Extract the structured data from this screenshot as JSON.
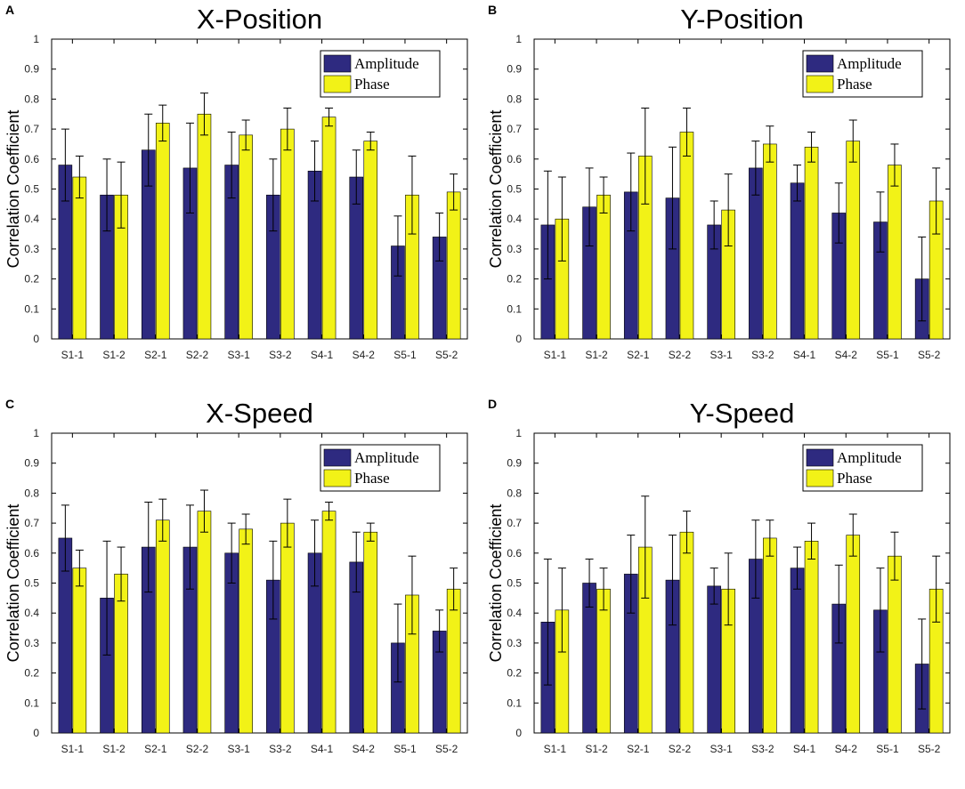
{
  "colors": {
    "amplitude": "#2e2a80",
    "phase": "#f2f217",
    "axis": "#000000"
  },
  "chart_data": [
    {
      "panel": "A",
      "type": "bar",
      "title": "X-Position",
      "xlabel": "",
      "ylabel": "Correlation  Coefficient",
      "ylim": [
        0,
        1
      ],
      "yticks": [
        "0",
        "0.1",
        "0.2",
        "0.3",
        "0.4",
        "0.5",
        "0.6",
        "0.7",
        "0.8",
        "0.9",
        "1"
      ],
      "legend_position": "top-right",
      "categories": [
        "S1-1",
        "S1-2",
        "S2-1",
        "S2-2",
        "S3-1",
        "S3-2",
        "S4-1",
        "S4-2",
        "S5-1",
        "S5-2"
      ],
      "series": [
        {
          "name": "Amplitude",
          "values": [
            0.58,
            0.48,
            0.63,
            0.57,
            0.58,
            0.48,
            0.56,
            0.54,
            0.31,
            0.34
          ],
          "errors": [
            0.12,
            0.12,
            0.12,
            0.15,
            0.11,
            0.12,
            0.1,
            0.09,
            0.1,
            0.08
          ]
        },
        {
          "name": "Phase",
          "values": [
            0.54,
            0.48,
            0.72,
            0.75,
            0.68,
            0.7,
            0.74,
            0.66,
            0.48,
            0.49
          ],
          "errors": [
            0.07,
            0.11,
            0.06,
            0.07,
            0.05,
            0.07,
            0.03,
            0.03,
            0.13,
            0.06
          ]
        }
      ]
    },
    {
      "panel": "B",
      "type": "bar",
      "title": "Y-Position",
      "xlabel": "",
      "ylabel": "Correlation  Coefficient",
      "ylim": [
        0,
        1
      ],
      "yticks": [
        "0",
        "0.1",
        "0.2",
        "0.3",
        "0.4",
        "0.5",
        "0.6",
        "0.7",
        "0.8",
        "0.9",
        "1"
      ],
      "legend_position": "top-right",
      "categories": [
        "S1-1",
        "S1-2",
        "S2-1",
        "S2-2",
        "S3-1",
        "S3-2",
        "S4-1",
        "S4-2",
        "S5-1",
        "S5-2"
      ],
      "series": [
        {
          "name": "Amplitude",
          "values": [
            0.38,
            0.44,
            0.49,
            0.47,
            0.38,
            0.57,
            0.52,
            0.42,
            0.39,
            0.2
          ],
          "errors": [
            0.18,
            0.13,
            0.13,
            0.17,
            0.08,
            0.09,
            0.06,
            0.1,
            0.1,
            0.14
          ]
        },
        {
          "name": "Phase",
          "values": [
            0.4,
            0.48,
            0.61,
            0.69,
            0.43,
            0.65,
            0.64,
            0.66,
            0.58,
            0.46
          ],
          "errors": [
            0.14,
            0.06,
            0.16,
            0.08,
            0.12,
            0.06,
            0.05,
            0.07,
            0.07,
            0.11
          ]
        }
      ]
    },
    {
      "panel": "C",
      "type": "bar",
      "title": "X-Speed",
      "xlabel": "",
      "ylabel": "Correlation  Coefficient",
      "ylim": [
        0,
        1
      ],
      "yticks": [
        "0",
        "0.1",
        "0.2",
        "0.3",
        "0.4",
        "0.5",
        "0.6",
        "0.7",
        "0.8",
        "0.9",
        "1"
      ],
      "legend_position": "top-right",
      "categories": [
        "S1-1",
        "S1-2",
        "S2-1",
        "S2-2",
        "S3-1",
        "S3-2",
        "S4-1",
        "S4-2",
        "S5-1",
        "S5-2"
      ],
      "series": [
        {
          "name": "Amplitude",
          "values": [
            0.65,
            0.45,
            0.62,
            0.62,
            0.6,
            0.51,
            0.6,
            0.57,
            0.3,
            0.34
          ],
          "errors": [
            0.11,
            0.19,
            0.15,
            0.14,
            0.1,
            0.13,
            0.11,
            0.1,
            0.13,
            0.07
          ]
        },
        {
          "name": "Phase",
          "values": [
            0.55,
            0.53,
            0.71,
            0.74,
            0.68,
            0.7,
            0.74,
            0.67,
            0.46,
            0.48
          ],
          "errors": [
            0.06,
            0.09,
            0.07,
            0.07,
            0.05,
            0.08,
            0.03,
            0.03,
            0.13,
            0.07
          ]
        }
      ]
    },
    {
      "panel": "D",
      "type": "bar",
      "title": "Y-Speed",
      "xlabel": "",
      "ylabel": "Correlation  Coefficient",
      "ylim": [
        0,
        1
      ],
      "yticks": [
        "0",
        "0.1",
        "0.2",
        "0.3",
        "0.4",
        "0.5",
        "0.6",
        "0.7",
        "0.8",
        "0.9",
        "1"
      ],
      "legend_position": "top-right",
      "categories": [
        "S1-1",
        "S1-2",
        "S2-1",
        "S2-2",
        "S3-1",
        "S3-2",
        "S4-1",
        "S4-2",
        "S5-1",
        "S5-2"
      ],
      "series": [
        {
          "name": "Amplitude",
          "values": [
            0.37,
            0.5,
            0.53,
            0.51,
            0.49,
            0.58,
            0.55,
            0.43,
            0.41,
            0.23
          ],
          "errors": [
            0.21,
            0.08,
            0.13,
            0.15,
            0.06,
            0.13,
            0.07,
            0.13,
            0.14,
            0.15
          ]
        },
        {
          "name": "Phase",
          "values": [
            0.41,
            0.48,
            0.62,
            0.67,
            0.48,
            0.65,
            0.64,
            0.66,
            0.59,
            0.48
          ],
          "errors": [
            0.14,
            0.07,
            0.17,
            0.07,
            0.12,
            0.06,
            0.06,
            0.07,
            0.08,
            0.11
          ]
        }
      ]
    }
  ]
}
